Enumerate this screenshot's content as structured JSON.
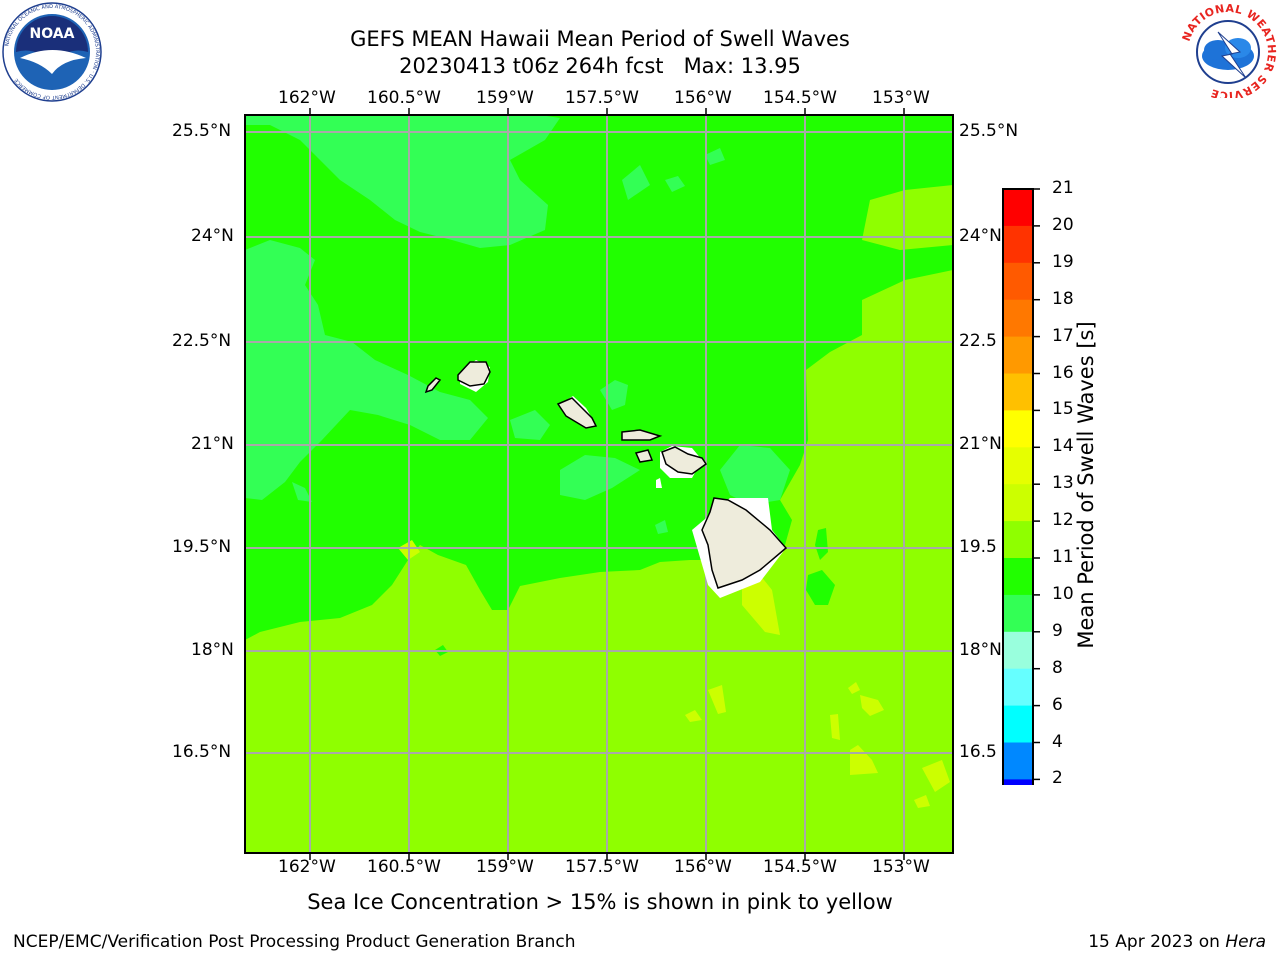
{
  "header": {
    "title_line1": "GEFS MEAN Hawaii Mean Period of Swell Waves",
    "title_line2": "20230413 t06z 264h fcst   Max: 13.95"
  },
  "logos": {
    "noaa_text": "NOAA",
    "noaa_ring_text": "NATIONAL OCEANIC AND ATMOSPHERIC ADMINISTRATION · U.S. DEPARTMENT OF COMMERCE",
    "nws_ring_text": "NATIONAL WEATHER SERVICE"
  },
  "map": {
    "lon_labels": [
      "162°W",
      "160.5°W",
      "159°W",
      "157.5°W",
      "156°W",
      "154.5°W",
      "153°W"
    ],
    "lat_labels_left": [
      "25.5°N",
      "24°N",
      "22.5°N",
      "21°N",
      "19.5°N",
      "18°N",
      "16.5°N"
    ],
    "lat_labels_right": [
      "25.5°N",
      "24°N",
      "22.5",
      "21°N",
      "19.5",
      "18°N",
      "16.5"
    ],
    "grid": true
  },
  "colorbar": {
    "label": "Mean Period of Swell Waves [s]",
    "ticks": [
      "21",
      "20",
      "19",
      "18",
      "17",
      "16",
      "15",
      "14",
      "13",
      "12",
      "11",
      "10",
      "9",
      "8",
      "6",
      "4",
      "2"
    ],
    "colors": [
      "#ff0000",
      "#ff3300",
      "#ff5a00",
      "#ff7800",
      "#ff9900",
      "#ffc000",
      "#ffff00",
      "#e6ff00",
      "#ccff00",
      "#8fff00",
      "#21ff00",
      "#33ff55",
      "#99ffdd",
      "#66ffff",
      "#00ffff",
      "#0088ff",
      "#0000ff"
    ],
    "range": [
      2,
      21
    ]
  },
  "footer": {
    "ice_note": "Sea Ice Concentration > 15% is shown in pink to yellow",
    "credit": "NCEP/EMC/Verification Post Processing Product Generation Branch",
    "date": "15 Apr 2023 on ",
    "machine": "Hera"
  }
}
